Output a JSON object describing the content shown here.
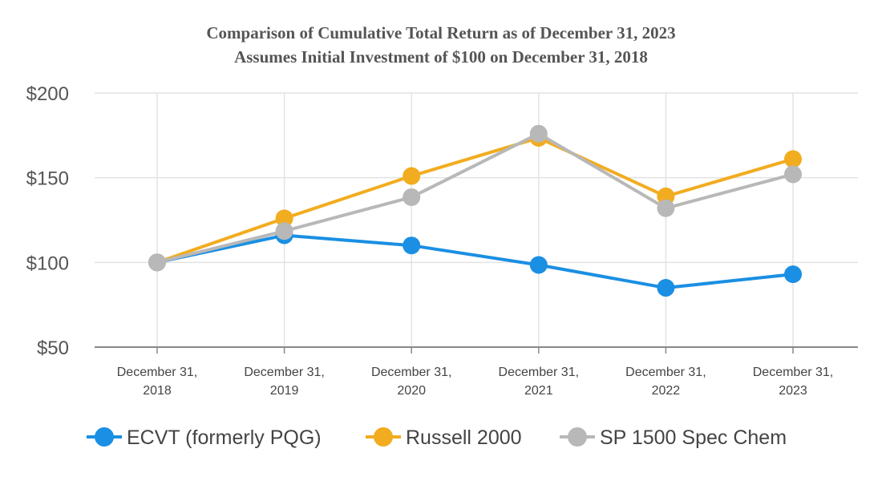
{
  "chart_data": {
    "type": "line",
    "title": "Comparison of Cumulative Total Return as of December 31, 2023",
    "subtitle": "Assumes Initial Investment of $100 on December 31, 2018",
    "categories": [
      [
        "December 31,",
        "2018"
      ],
      [
        "December 31,",
        "2019"
      ],
      [
        "December 31,",
        "2020"
      ],
      [
        "December 31,",
        "2021"
      ],
      [
        "December 31,",
        "2022"
      ],
      [
        "December 31,",
        "2023"
      ]
    ],
    "y_ticks": [
      "$50",
      "$100",
      "$150",
      "$200"
    ],
    "y_tick_values": [
      50,
      100,
      150,
      200
    ],
    "ylim": [
      50,
      200
    ],
    "grid": true,
    "legend_position": "bottom",
    "series": [
      {
        "name": "ECVT (formerly PQG)",
        "color": "#1a8fe3",
        "values": [
          100,
          116,
          110,
          98.5,
          85,
          93
        ]
      },
      {
        "name": "Russell 2000",
        "color": "#f2ac20",
        "values": [
          100,
          126,
          151,
          173.5,
          139,
          161
        ]
      },
      {
        "name": "SP 1500 Spec Chem",
        "color": "#b8b8b8",
        "values": [
          100,
          118.5,
          138.5,
          176,
          132,
          152
        ]
      }
    ]
  }
}
